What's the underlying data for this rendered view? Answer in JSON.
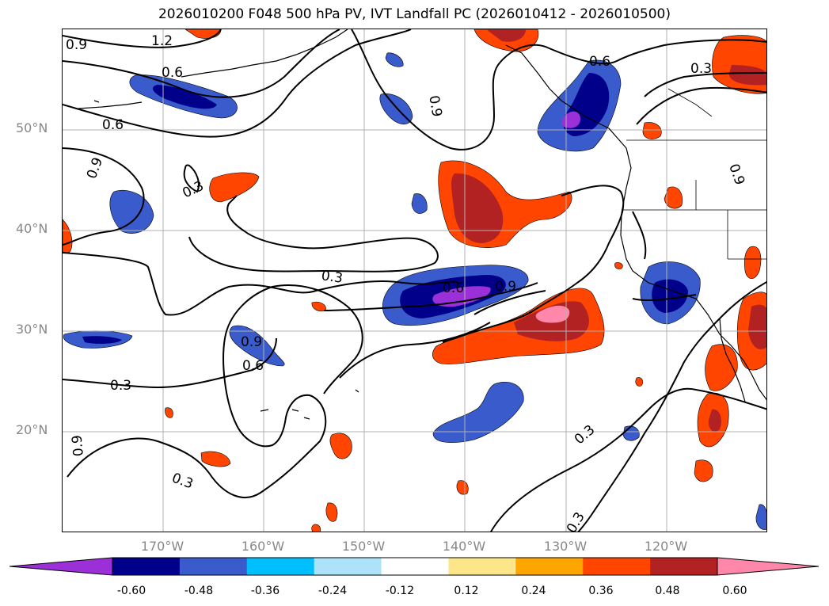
{
  "title": "2026010200 F048 500 hPa PV, IVT Landfall PC (2026010412 - 2026010500)",
  "lat_labels": [
    "50°N",
    "40°N",
    "30°N",
    "20°N"
  ],
  "lon_labels": [
    "170°W",
    "160°W",
    "150°W",
    "140°W",
    "130°W",
    "120°W"
  ],
  "contour_labels": [
    "0.9",
    "1.2",
    "0.6",
    "0.6",
    "0.9",
    "0.3",
    "0.9",
    "0.6",
    "0.3",
    "0.6",
    "0.9",
    "0.3",
    "0.9",
    "0.6",
    "0.3",
    "0.9",
    "0.3",
    "0.3",
    "0.3",
    "0.9"
  ],
  "colorbar": {
    "ticks": [
      "-0.60",
      "-0.48",
      "-0.36",
      "-0.24",
      "-0.12",
      "0.12",
      "0.24",
      "0.36",
      "0.48",
      "0.60"
    ],
    "colors": [
      "#9b30d8",
      "#00008b",
      "#3a5bcc",
      "#00bfff",
      "#ade3fa",
      "#ffffff",
      "#fde68a",
      "#ffa500",
      "#ff4500",
      "#b22222",
      "#ff88aa"
    ]
  },
  "colors": {
    "grid": "#b0b0b0",
    "contour": "#000000",
    "coast": "#000000"
  }
}
